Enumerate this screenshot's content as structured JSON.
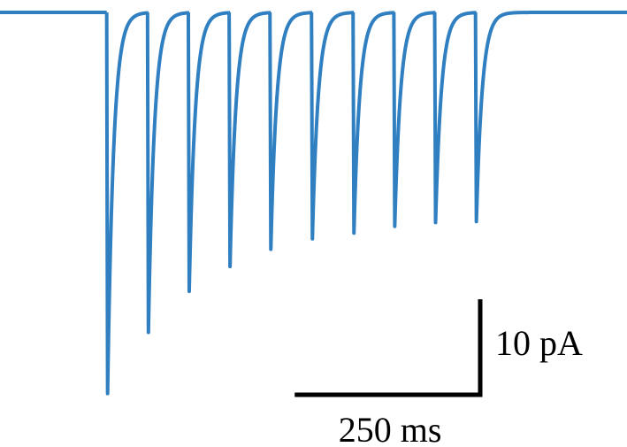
{
  "chart_data": {
    "type": "trace",
    "x": [
      145,
      200,
      255,
      310,
      365,
      421,
      477,
      532,
      587,
      642
    ],
    "values": [
      -39.9,
      -33.5,
      -29.2,
      -26.6,
      -24.8,
      -23.7,
      -23.1,
      -22.4,
      -22.0,
      -21.9
    ],
    "color": "#2f7fc1",
    "decay_tau": 8,
    "xlim": [
      0,
      845
    ],
    "ylim": [
      -45.5,
      1.3
    ],
    "scale_bars": {
      "y": {
        "value": 10,
        "label": "10 pA"
      },
      "x": {
        "value": 250,
        "label": "250 ms"
      }
    }
  }
}
